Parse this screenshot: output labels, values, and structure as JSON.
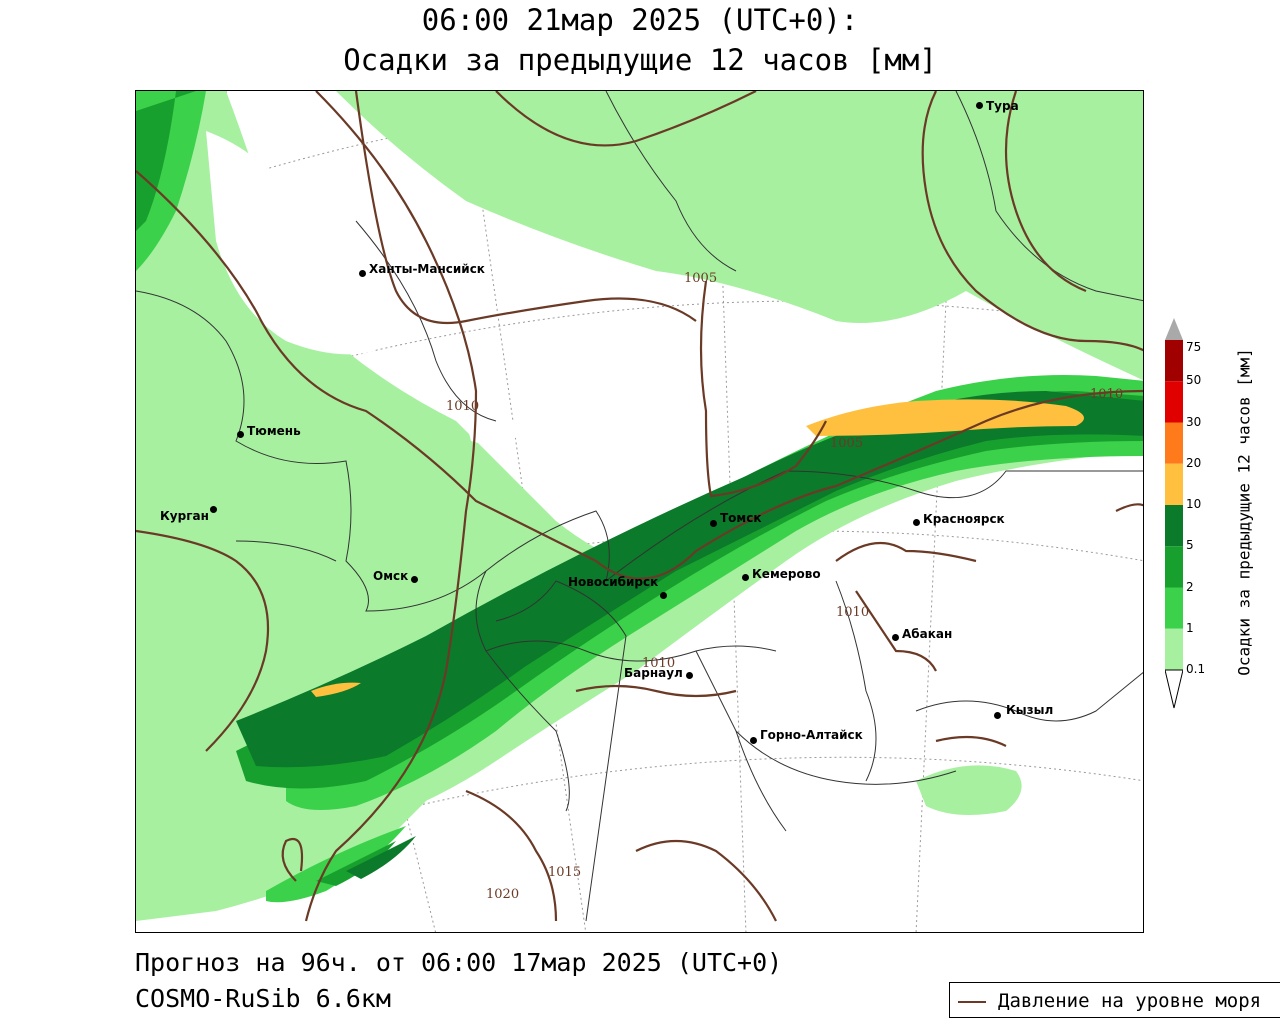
{
  "header": {
    "line1": "06:00 21мар 2025 (UTC+0):",
    "line2": "Осадки за предыдущие 12 часов [мм]"
  },
  "footer": {
    "forecast": "Прогноз на 96ч. от 06:00 17мар 2025 (UTC+0)",
    "model": "COSMO-RuSib 6.6км"
  },
  "legend": {
    "pressure_line": "Давление на уровне моря",
    "pressure_color": "#6b3a26"
  },
  "colorbar": {
    "title": "Осадки за предыдущие 12 часов [мм]",
    "levels": [
      {
        "value": "75",
        "color": "#a9a9a9"
      },
      {
        "value": "50",
        "color": "#a00000"
      },
      {
        "value": "30",
        "color": "#e00000"
      },
      {
        "value": "20",
        "color": "#ff7a1a"
      },
      {
        "value": "10",
        "color": "#ffbf3f"
      },
      {
        "value": "5",
        "color": "#0b7a2a"
      },
      {
        "value": "2",
        "color": "#18a02e"
      },
      {
        "value": "1",
        "color": "#3cd14a"
      },
      {
        "value": "0.1",
        "color": "#a6f0a0"
      }
    ]
  },
  "cities": [
    {
      "name": "Тура"
    },
    {
      "name": "Ханты-Мансийск"
    },
    {
      "name": "Тюмень"
    },
    {
      "name": "Курган"
    },
    {
      "name": "Омск"
    },
    {
      "name": "Томск"
    },
    {
      "name": "Красноярск"
    },
    {
      "name": "Кемерово"
    },
    {
      "name": "Новосибирск"
    },
    {
      "name": "Абакан"
    },
    {
      "name": "Барнаул"
    },
    {
      "name": "Кызыл"
    },
    {
      "name": "Горно-Алтайск"
    }
  ],
  "isobar_labels": [
    "1005",
    "1010",
    "1005",
    "1010",
    "1010",
    "1010",
    "1015",
    "1020"
  ]
}
